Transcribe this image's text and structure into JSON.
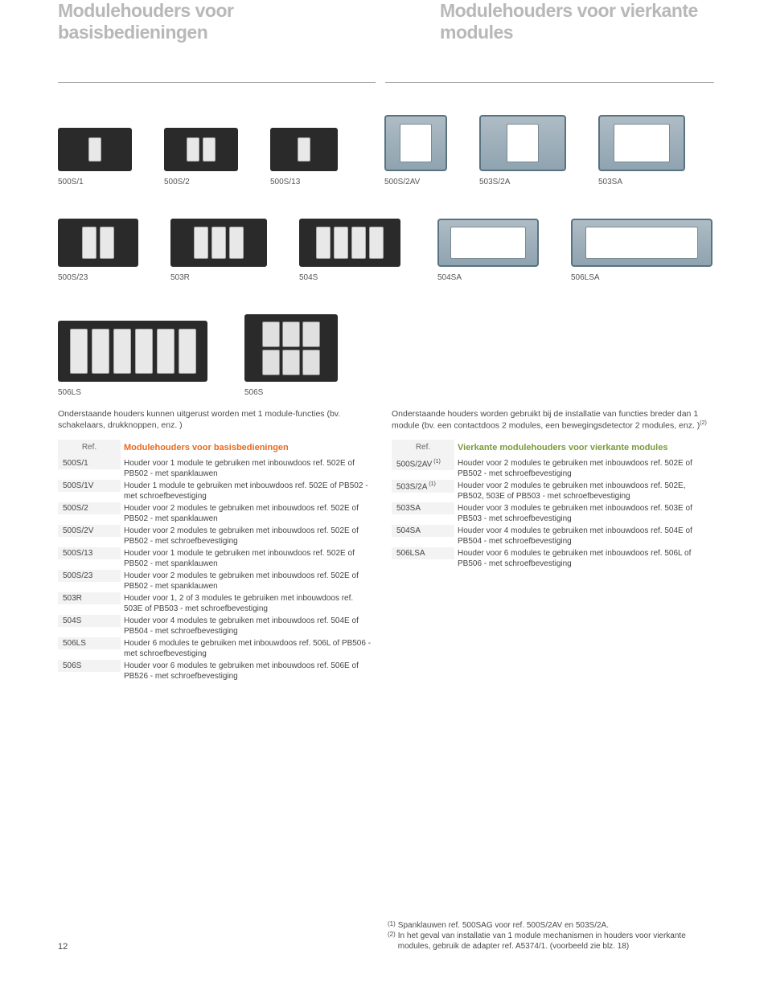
{
  "heading_left": "Modulehouders voor basisbedieningen",
  "heading_right": "Modulehouders voor vierkante modules",
  "products_row1": [
    {
      "label": "500S/1"
    },
    {
      "label": "500S/2"
    },
    {
      "label": "500S/13"
    },
    {
      "label": "500S/2AV"
    },
    {
      "label": "503S/2A"
    },
    {
      "label": "503SA"
    }
  ],
  "products_row2": [
    {
      "label": "500S/23"
    },
    {
      "label": "503R"
    },
    {
      "label": "504S"
    },
    {
      "label": "504SA"
    },
    {
      "label": "506LSA"
    }
  ],
  "products_row3": [
    {
      "label": "506LS"
    },
    {
      "label": "506S"
    }
  ],
  "intro_left": "Onderstaande houders kunnen uitgerust worden met 1 module-functies (bv. schakelaars, drukknoppen, enz. )",
  "intro_right_a": "Onderstaande houders worden gebruikt bij de installatie van functies breder dan 1 module (bv. een contactdoos 2 modules, een bewegingsdetector 2 modules, enz. )",
  "intro_right_sup": "(2)",
  "table_left": {
    "ref_header": "Ref.",
    "title": "Modulehouders voor basisbedieningen",
    "rows": [
      {
        "ref": "500S/1",
        "desc": "Houder voor 1 module te gebruiken met inbouwdoos ref. 502E of PB502 - met spanklauwen"
      },
      {
        "ref": "500S/1V",
        "desc": "Houder 1 module te gebruiken met inbouwdoos ref. 502E of PB502 - met schroefbevestiging"
      },
      {
        "ref": "500S/2",
        "desc": "Houder voor 2 modules te gebruiken met inbouwdoos ref. 502E of PB502 - met spanklauwen"
      },
      {
        "ref": "500S/2V",
        "desc": "Houder voor 2 modules te gebruiken met inbouwdoos ref. 502E of PB502 - met schroefbevestiging"
      },
      {
        "ref": "500S/13",
        "desc": "Houder voor 1 module te gebruiken met inbouwdoos ref. 502E of PB502 - met spanklauwen"
      },
      {
        "ref": "500S/23",
        "desc": "Houder voor 2 modules te gebruiken met inbouwdoos ref. 502E of PB502 - met spanklauwen"
      },
      {
        "ref": "503R",
        "desc": "Houder voor 1, 2 of 3 modules te gebruiken met inbouwdoos ref. 503E of PB503 - met schroefbevestiging"
      },
      {
        "ref": "504S",
        "desc": "Houder voor 4 modules te gebruiken met inbouwdoos ref. 504E of PB504 - met schroefbevestiging"
      },
      {
        "ref": "506LS",
        "desc": "Houder 6 modules te gebruiken met inbouwdoos ref. 506L of PB506 - met schroefbevestiging"
      },
      {
        "ref": "506S",
        "desc": "Houder voor 6 modules te gebruiken met inbouwdoos ref. 506E of PB526 - met schroefbevestiging"
      }
    ]
  },
  "table_right": {
    "ref_header": "Ref.",
    "title": "Vierkante modulehouders voor vierkante modules",
    "rows": [
      {
        "ref": "500S/2AV",
        "sup": "(1)",
        "desc": "Houder voor 2 modules te gebruiken met inbouwdoos ref. 502E of PB502 - met schroefbevestiging"
      },
      {
        "ref": "503S/2A",
        "sup": "(1)",
        "desc": "Houder voor 2 modules te gebruiken met inbouwdoos ref. 502E, PB502, 503E of PB503 - met schroefbevestiging"
      },
      {
        "ref": "503SA",
        "desc": "Houder voor 3 modules te gebruiken met inbouwdoos ref. 503E of PB503 - met schroefbevestiging"
      },
      {
        "ref": "504SA",
        "desc": "Houder voor 4 modules te gebruiken met inbouwdoos ref. 504E of PB504 - met schroefbevestiging"
      },
      {
        "ref": "506LSA",
        "desc": "Houder voor 6 modules te gebruiken met inbouwdoos ref. 506L of PB506 - met schroefbevestiging"
      }
    ]
  },
  "footnotes": [
    {
      "mark": "(1)",
      "text": "Spanklauwen ref. 500SAG voor ref. 500S/2AV en 503S/2A."
    },
    {
      "mark": "(2)",
      "text": "In het geval van installatie van 1 module mechanismen in houders voor vierkante modules, gebruik de adapter ref. A5374/1. (voorbeeld zie blz. 18)"
    }
  ],
  "page_number": "12",
  "colors": {
    "heading_gray": "#b8b8b8",
    "text": "#4a4a4a",
    "accent_orange": "#e86a1f",
    "accent_green": "#7a9b3a",
    "shade_bg": "#f3f3f3",
    "frame_dark": "#2a2a2a",
    "frame_light_border": "#5a7380"
  }
}
